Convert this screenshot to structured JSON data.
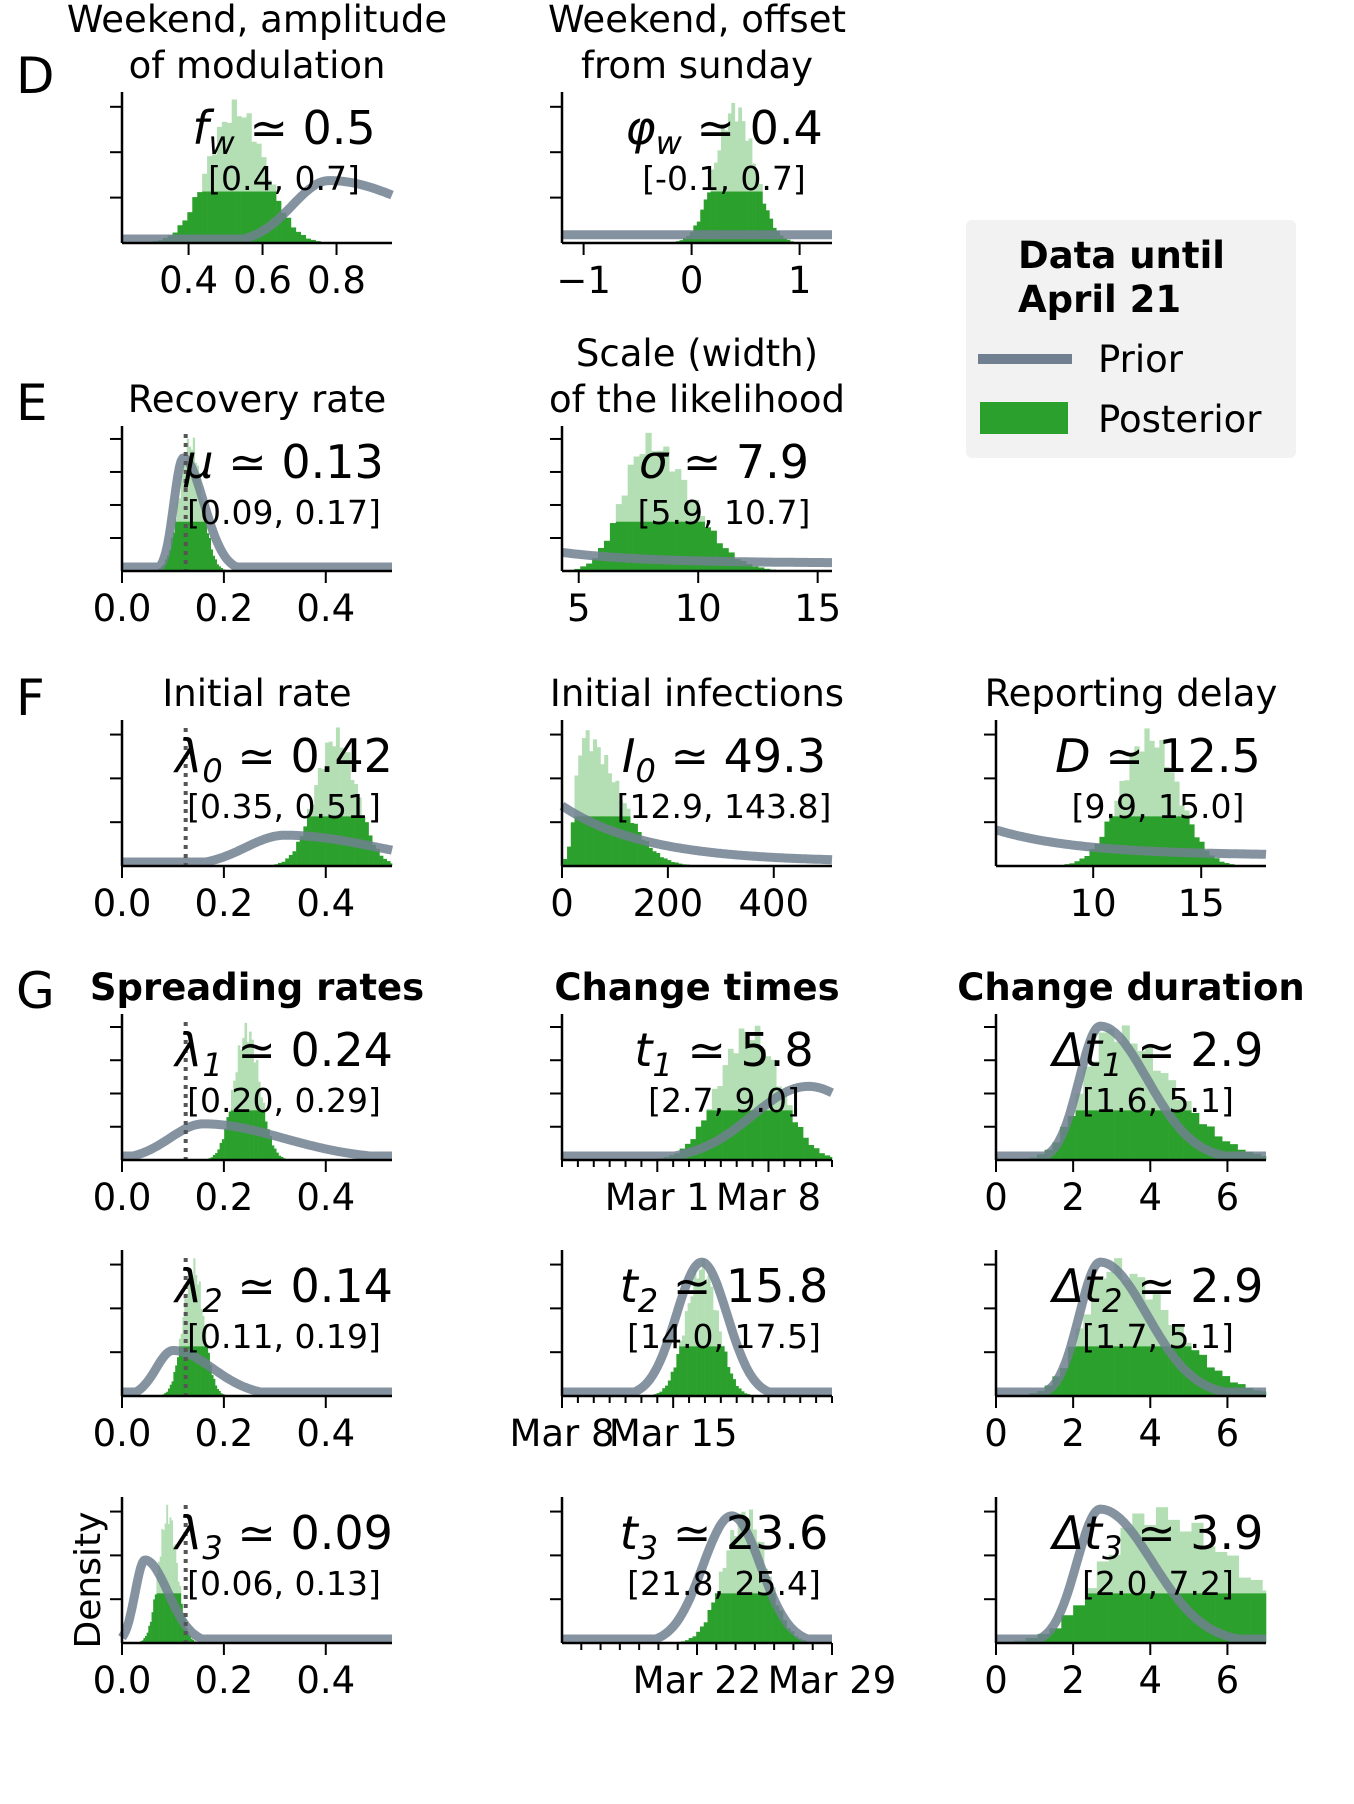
{
  "row_letters": [
    "D",
    "E",
    "F",
    "G"
  ],
  "legend": {
    "title_line1": "Data until",
    "title_line2": "April 21",
    "prior_label": "Prior",
    "posterior_label": "Posterior"
  },
  "colors": {
    "prior": "#708090",
    "prior_light": "#c3c8cf",
    "posterior": "#2ca02c",
    "posterior_light": "#b4dfb4",
    "legend_bg": "#f2f2f2",
    "ref_line": "#555555"
  },
  "ylabel": "Density",
  "chart_data": [
    {
      "id": "D1",
      "type": "histogram",
      "row": "D",
      "col": 0,
      "title_lines": [
        "Weekend, amplitude",
        "of modulation"
      ],
      "title_bold": false,
      "param": "f",
      "sub": "w",
      "estimate_text": "≃ 0.5",
      "interval_text": "[0.4, 0.7]",
      "xlim": [
        0.22,
        0.95
      ],
      "ylim": [
        0,
        1.05
      ],
      "xticks": [
        0.4,
        0.6,
        0.8
      ],
      "xtick_labels": [
        "0.4",
        "0.6",
        "0.8"
      ],
      "minor_xticks": [],
      "yticks": 3,
      "ref_line": null,
      "posterior": {
        "mean": 0.53,
        "sd": 0.075,
        "skew": 0
      },
      "prior": {
        "kind": "gamma_like",
        "mode": 0.78,
        "sd": 0.18,
        "peak": 0.45
      }
    },
    {
      "id": "D2",
      "type": "histogram",
      "row": "D",
      "col": 1,
      "title_lines": [
        "Weekend, offset",
        "from sunday"
      ],
      "title_bold": false,
      "param": "φ",
      "sub": "w",
      "estimate_text": "≃ 0.4",
      "interval_text": "[-0.1, 0.7]",
      "xlim": [
        -1.2,
        1.3
      ],
      "ylim": [
        0,
        1.05
      ],
      "xticks": [
        -1,
        0,
        1
      ],
      "xtick_labels": [
        "−1",
        "0",
        "1"
      ],
      "minor_xticks": [],
      "yticks": 3,
      "ref_line": null,
      "posterior": {
        "mean": 0.4,
        "sd": 0.18,
        "skew": 0
      },
      "prior": {
        "kind": "flat",
        "level": 0.06
      }
    },
    {
      "id": "E1",
      "type": "histogram",
      "row": "E",
      "col": 0,
      "title_lines": [
        "Recovery rate"
      ],
      "title_bold": false,
      "param": "μ",
      "sub": "",
      "estimate_text": "≃ 0.13",
      "interval_text": "[0.09, 0.17]",
      "xlim": [
        0,
        0.53
      ],
      "ylim": [
        0,
        1.05
      ],
      "xticks": [
        0,
        0.2,
        0.4
      ],
      "xtick_labels": [
        "0.0",
        "0.2",
        "0.4"
      ],
      "minor_xticks": [],
      "yticks": 4,
      "ref_line": 0.125,
      "posterior": {
        "mean": 0.135,
        "sd": 0.022,
        "skew": 0
      },
      "prior": {
        "kind": "lognormal",
        "mode": 0.12,
        "sd": 0.03,
        "peak": 0.85
      }
    },
    {
      "id": "E2",
      "type": "histogram",
      "row": "E",
      "col": 1,
      "title_lines": [
        "Scale (width)",
        "of the likelihood"
      ],
      "title_bold": false,
      "param": "σ",
      "sub": "",
      "estimate_text": "≃ 7.9",
      "interval_text": "[5.9, 10.7]",
      "xlim": [
        4.3,
        15.6
      ],
      "ylim": [
        0,
        1.05
      ],
      "xticks": [
        5,
        10,
        15
      ],
      "xtick_labels": [
        "5",
        "10",
        "15"
      ],
      "minor_xticks": [],
      "yticks": 4,
      "ref_line": null,
      "posterior": {
        "mean": 7.9,
        "sd": 1.25,
        "skew": 0.4
      },
      "prior": {
        "kind": "decay",
        "start": 0.14,
        "end": 0.06
      }
    },
    {
      "id": "F1",
      "type": "histogram",
      "row": "F",
      "col": 0,
      "title_lines": [
        "Initial rate"
      ],
      "title_bold": false,
      "param": "λ",
      "sub": "0",
      "estimate_text": "≃ 0.42",
      "interval_text": "[0.35, 0.51]",
      "xlim": [
        0,
        0.53
      ],
      "ylim": [
        0,
        1.05
      ],
      "xticks": [
        0,
        0.2,
        0.4
      ],
      "xtick_labels": [
        "0.0",
        "0.2",
        "0.4"
      ],
      "minor_xticks": [],
      "yticks": 3,
      "ref_line": 0.125,
      "posterior": {
        "mean": 0.42,
        "sd": 0.04,
        "skew": 0
      },
      "prior": {
        "kind": "gamma_like",
        "mode": 0.32,
        "sd": 0.14,
        "peak": 0.23
      }
    },
    {
      "id": "F2",
      "type": "histogram",
      "row": "F",
      "col": 1,
      "title_lines": [
        "Initial infections"
      ],
      "title_bold": false,
      "param": "I",
      "sub": "0",
      "estimate_text": "≃ 49.3",
      "interval_text": "[12.9, 143.8]",
      "xlim": [
        0,
        510
      ],
      "ylim": [
        0,
        1.05
      ],
      "xticks": [
        0,
        200,
        400
      ],
      "xtick_labels": [
        "0",
        "200",
        "400"
      ],
      "minor_xticks": [],
      "yticks": 3,
      "ref_line": null,
      "posterior": {
        "mean": 40,
        "sd": 25,
        "skew": 1.6
      },
      "prior": {
        "kind": "decay",
        "start": 0.45,
        "end": 0.03
      }
    },
    {
      "id": "F3",
      "type": "histogram",
      "row": "F",
      "col": 2,
      "title_lines": [
        "Reporting delay"
      ],
      "title_bold": false,
      "param": "D",
      "sub": "",
      "estimate_text": "≃ 12.5",
      "interval_text": "[9.9, 15.0]",
      "xlim": [
        5.5,
        18
      ],
      "ylim": [
        0,
        1.05
      ],
      "xticks": [
        10,
        15
      ],
      "xtick_labels": [
        "10",
        "15"
      ],
      "minor_xticks": [],
      "yticks": 3,
      "ref_line": null,
      "posterior": {
        "mean": 12.6,
        "sd": 1.3,
        "skew": 0
      },
      "prior": {
        "kind": "decay",
        "start": 0.27,
        "end": 0.08
      }
    },
    {
      "id": "G1",
      "type": "histogram",
      "row": "G",
      "col": 0,
      "title_lines": [
        "Spreading rates"
      ],
      "title_bold": true,
      "param": "λ",
      "sub": "1",
      "estimate_text": "≃ 0.24",
      "interval_text": "[0.20, 0.29]",
      "xlim": [
        0,
        0.53
      ],
      "ylim": [
        0,
        1.05
      ],
      "xticks": [
        0,
        0.2,
        0.4
      ],
      "xtick_labels": [
        "0.0",
        "0.2",
        "0.4"
      ],
      "minor_xticks": [],
      "yticks": 4,
      "ref_line": 0.125,
      "posterior": {
        "mean": 0.245,
        "sd": 0.025,
        "skew": 0
      },
      "prior": {
        "kind": "gamma_like",
        "mode": 0.16,
        "sd": 0.12,
        "peak": 0.27
      }
    },
    {
      "id": "G2",
      "type": "histogram",
      "row": "G",
      "col": 1,
      "title_lines": [
        "Change times"
      ],
      "title_bold": true,
      "param": "t",
      "sub": "1",
      "estimate_text": "≃ 5.8",
      "interval_text": "[2.7, 9.0]",
      "xlim": [
        -6,
        11
      ],
      "ylim": [
        0,
        1.05
      ],
      "xticks": [
        0,
        7
      ],
      "xtick_labels": [
        "Mar 1",
        "Mar 8"
      ],
      "minor_xticks": [
        -6,
        -5,
        -4,
        -3,
        -2,
        -1,
        1,
        2,
        3,
        4,
        5,
        6,
        8,
        9,
        10,
        11
      ],
      "yticks": 4,
      "ref_line": null,
      "posterior": {
        "mean": 5.8,
        "sd": 1.9,
        "skew": 0
      },
      "prior": {
        "kind": "normal",
        "mean": 9.5,
        "sd": 3.5,
        "peak": 0.55
      }
    },
    {
      "id": "G3",
      "type": "histogram",
      "row": "G",
      "col": 2,
      "title_lines": [
        "Change duration"
      ],
      "title_bold": true,
      "param": "Δt",
      "sub": "1",
      "estimate_text": "≃ 2.9",
      "interval_text": "[1.6, 5.1]",
      "xlim": [
        0,
        7
      ],
      "ylim": [
        0,
        1.05
      ],
      "xticks": [
        0,
        2,
        4,
        6
      ],
      "xtick_labels": [
        "0",
        "2",
        "4",
        "6"
      ],
      "minor_xticks": [],
      "yticks": 4,
      "ref_line": null,
      "posterior": {
        "mean": 3.0,
        "sd": 0.95,
        "skew": 0.6
      },
      "prior": {
        "kind": "lognormal",
        "mode": 2.7,
        "sd": 0.9,
        "peak": 1.0
      }
    },
    {
      "id": "H1",
      "type": "histogram",
      "row": "H",
      "col": 0,
      "title_lines": [],
      "title_bold": false,
      "param": "λ",
      "sub": "2",
      "estimate_text": "≃ 0.14",
      "interval_text": "[0.11, 0.19]",
      "xlim": [
        0,
        0.53
      ],
      "ylim": [
        0,
        1.05
      ],
      "xticks": [
        0,
        0.2,
        0.4
      ],
      "xtick_labels": [
        "0.0",
        "0.2",
        "0.4"
      ],
      "minor_xticks": [],
      "yticks": 3,
      "ref_line": 0.125,
      "posterior": {
        "mean": 0.14,
        "sd": 0.02,
        "skew": 0
      },
      "prior": {
        "kind": "gamma_like",
        "mode": 0.1,
        "sd": 0.06,
        "peak": 0.34
      }
    },
    {
      "id": "H2",
      "type": "histogram",
      "row": "H",
      "col": 1,
      "title_lines": [],
      "title_bold": false,
      "param": "t",
      "sub": "2",
      "estimate_text": "≃ 15.8",
      "interval_text": "[14.0, 17.5]",
      "xlim": [
        7,
        24
      ],
      "ylim": [
        0,
        1.05
      ],
      "xticks": [
        7,
        14
      ],
      "xtick_labels": [
        "Mar 8",
        "Mar 15"
      ],
      "minor_xticks": [
        8,
        9,
        10,
        11,
        12,
        13,
        15,
        16,
        17,
        18,
        19,
        20,
        21,
        22,
        23,
        24
      ],
      "yticks": 3,
      "ref_line": null,
      "posterior": {
        "mean": 15.8,
        "sd": 1.0,
        "skew": 0
      },
      "prior": {
        "kind": "normal",
        "mean": 15.8,
        "sd": 1.6,
        "peak": 1.0
      }
    },
    {
      "id": "H3",
      "type": "histogram",
      "row": "H",
      "col": 2,
      "title_lines": [],
      "title_bold": false,
      "param": "Δt",
      "sub": "2",
      "estimate_text": "≃ 2.9",
      "interval_text": "[1.7, 5.1]",
      "xlim": [
        0,
        7
      ],
      "ylim": [
        0,
        1.05
      ],
      "xticks": [
        0,
        2,
        4,
        6
      ],
      "xtick_labels": [
        "0",
        "2",
        "4",
        "6"
      ],
      "minor_xticks": [],
      "yticks": 3,
      "ref_line": null,
      "posterior": {
        "mean": 3.0,
        "sd": 0.95,
        "skew": 0.6
      },
      "prior": {
        "kind": "lognormal",
        "mode": 2.7,
        "sd": 0.9,
        "peak": 1.0
      }
    },
    {
      "id": "I1",
      "type": "histogram",
      "row": "I",
      "col": 0,
      "title_lines": [],
      "title_bold": false,
      "param": "λ",
      "sub": "3",
      "estimate_text": "≃ 0.09",
      "interval_text": "[0.06, 0.13]",
      "xlim": [
        0,
        0.53
      ],
      "ylim": [
        0,
        1.05
      ],
      "xticks": [
        0,
        0.2,
        0.4
      ],
      "xtick_labels": [
        "0.0",
        "0.2",
        "0.4"
      ],
      "minor_xticks": [],
      "yticks": 3,
      "ref_line": 0.125,
      "posterior": {
        "mean": 0.09,
        "sd": 0.018,
        "skew": 0
      },
      "prior": {
        "kind": "gamma_like",
        "mode": 0.045,
        "sd": 0.035,
        "peak": 0.62
      }
    },
    {
      "id": "I2",
      "type": "histogram",
      "row": "I",
      "col": 1,
      "title_lines": [],
      "title_bold": false,
      "param": "t",
      "sub": "3",
      "estimate_text": "≃ 23.6",
      "interval_text": "[21.8, 25.4]",
      "xlim": [
        14,
        28
      ],
      "ylim": [
        0,
        1.05
      ],
      "xticks": [
        21,
        28
      ],
      "xtick_labels": [
        "Mar 22",
        "Mar 29"
      ],
      "minor_xticks": [
        15,
        16,
        17,
        18,
        19,
        20,
        22,
        23,
        24,
        25,
        26,
        27
      ],
      "yticks": 3,
      "ref_line": null,
      "posterior": {
        "mean": 23.5,
        "sd": 1.1,
        "skew": 0
      },
      "prior": {
        "kind": "normal",
        "mean": 22.8,
        "sd": 1.5,
        "peak": 0.95
      }
    },
    {
      "id": "I3",
      "type": "histogram",
      "row": "I",
      "col": 2,
      "title_lines": [],
      "title_bold": false,
      "param": "Δt",
      "sub": "3",
      "estimate_text": "≃ 3.9",
      "interval_text": "[2.0, 7.2]",
      "xlim": [
        0,
        7
      ],
      "ylim": [
        0,
        1.05
      ],
      "xticks": [
        0,
        2,
        4,
        6
      ],
      "xtick_labels": [
        "0",
        "2",
        "4",
        "6"
      ],
      "minor_xticks": [],
      "yticks": 3,
      "ref_line": null,
      "posterior": {
        "mean": 4.0,
        "sd": 1.5,
        "skew": 0.5
      },
      "prior": {
        "kind": "lognormal",
        "mode": 2.7,
        "sd": 1.0,
        "peak": 1.0
      }
    }
  ]
}
